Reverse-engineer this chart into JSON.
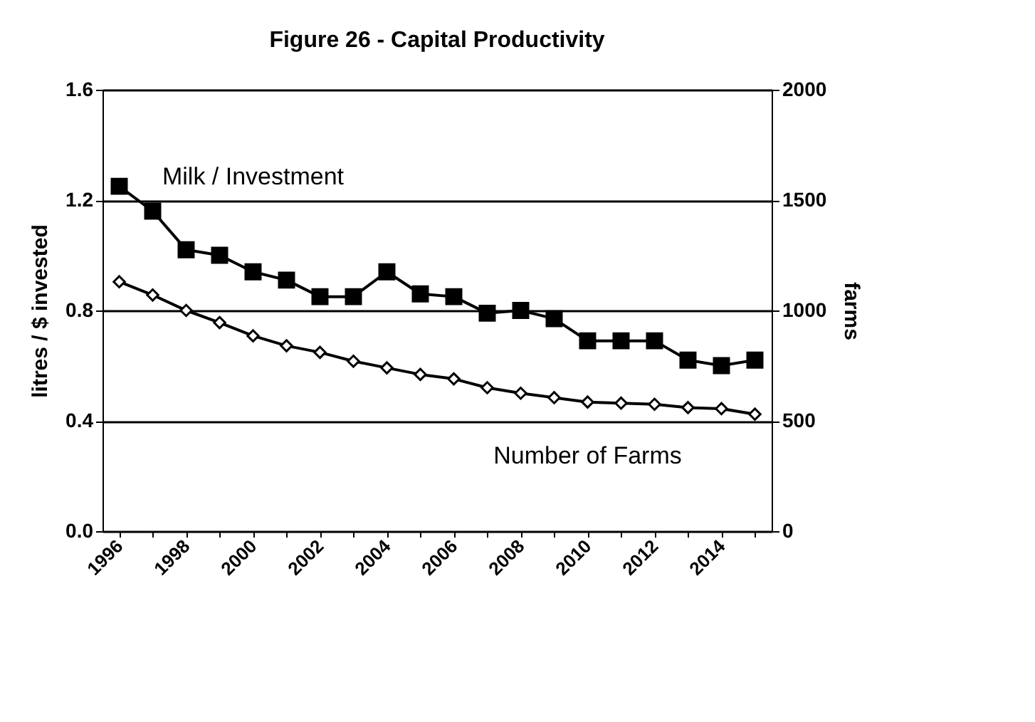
{
  "chart_data": {
    "type": "line",
    "title": "Figure 26 - Capital Productivity",
    "ylabel": "litres / $ invested",
    "y2label": "farms",
    "categories": [
      "1996",
      null,
      "1998",
      null,
      "2000",
      null,
      "2002",
      null,
      "2004",
      null,
      "2006",
      null,
      "2008",
      null,
      "2010",
      null,
      "2012",
      null,
      "2014",
      null
    ],
    "series": [
      {
        "name": "Milk / Investment",
        "color": "#000000",
        "marker": "square",
        "values": [
          1.25,
          1.16,
          1.02,
          1.0,
          0.94,
          0.91,
          0.85,
          0.85,
          0.94,
          0.86,
          0.85,
          0.79,
          0.8,
          0.77,
          0.69,
          0.69,
          0.69,
          0.62,
          0.6,
          0.62
        ]
      },
      {
        "name": "Number of Farms",
        "color": "#000000",
        "marker": "diamond",
        "axis": "y2",
        "values": [
          1130,
          1070,
          1000,
          945,
          885,
          840,
          810,
          770,
          740,
          710,
          690,
          650,
          625,
          605,
          585,
          580,
          575,
          560,
          555,
          530
        ]
      }
    ],
    "ylim": [
      0,
      1.6
    ],
    "yticks": [
      {
        "value": 0,
        "label": "0.0"
      },
      0.4,
      0.8,
      1.2,
      1.6
    ],
    "y2lim": [
      0,
      2000
    ],
    "y2ticks": [
      0,
      500,
      1000,
      1500,
      2000
    ],
    "grid": "y",
    "line_style": "solid"
  }
}
